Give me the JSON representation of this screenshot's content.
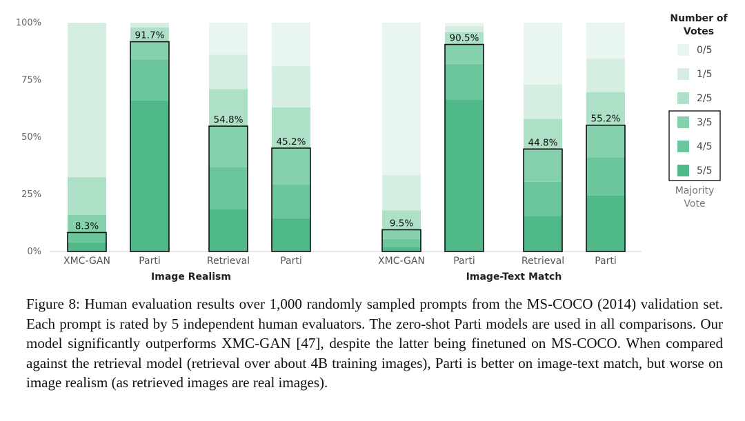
{
  "chart_data": {
    "type": "bar",
    "stacked": true,
    "ylim": [
      0,
      100
    ],
    "y_ticks": [
      "0%",
      "25%",
      "50%",
      "75%",
      "100%"
    ],
    "legend": {
      "title": [
        "Number of",
        "Votes"
      ],
      "placement": "right",
      "items": [
        "0/5",
        "1/5",
        "2/5",
        "3/5",
        "4/5",
        "5/5"
      ],
      "colors": [
        "#e9f6ef",
        "#d5eee1",
        "#ade0c7",
        "#85d1ae",
        "#6cc69d",
        "#4fb98a"
      ],
      "majority_note": [
        "Majority",
        "Vote"
      ]
    },
    "groups": [
      {
        "label": "Image Realism",
        "bars": [
          {
            "category": "XMC-GAN",
            "majority": 8.3,
            "majority_label": "8.3%",
            "segments": [
              4,
              4.3,
              7.7,
              16.5,
              67.5
            ]
          },
          {
            "category": "Parti",
            "majority": 91.7,
            "majority_label": "91.7%",
            "segments": [
              66,
              18,
              7.7,
              6.3,
              2
            ]
          },
          {
            "category": "Retrieval",
            "majority": 54.8,
            "majority_label": "54.8%",
            "segments": [
              18.5,
              18.5,
              17.8,
              16.2,
              15
            ]
          },
          {
            "category": "Parti",
            "majority": 45.2,
            "majority_label": "45.2%",
            "segments": [
              14.5,
              14.7,
              16,
              17.8,
              18
            ]
          }
        ]
      },
      {
        "label": "Image-Text Match",
        "bars": [
          {
            "category": "XMC-GAN",
            "majority": 9.5,
            "majority_label": "9.5%",
            "segments": [
              2,
              3.5,
              4,
              8.5,
              15.5
            ]
          },
          {
            "category": "Parti",
            "majority": 90.5,
            "majority_label": "90.5%",
            "segments": [
              66.5,
              15.5,
              8.5,
              5.5,
              2.5
            ]
          },
          {
            "category": "Retrieval",
            "majority": 44.8,
            "majority_label": "44.8%",
            "segments": [
              15.5,
              15,
              14.3,
              13.2,
              15
            ]
          },
          {
            "category": "Parti",
            "majority": 55.2,
            "majority_label": "55.2%",
            "segments": [
              24.5,
              16.7,
              14,
              14.5,
              14.5
            ]
          }
        ]
      }
    ]
  },
  "caption": "Figure 8: Human evaluation results over 1,000 randomly sampled prompts from the MS-COCO (2014) validation set. Each prompt is rated by 5 independent human evaluators. The zero-shot Parti models are used in all comparisons. Our model significantly outperforms XMC-GAN [47], despite the latter being finetuned on MS-COCO. When compared against the retrieval model (retrieval over about 4B training images), Parti is better on image-text match, but worse on image realism (as retrieved images are real images)."
}
